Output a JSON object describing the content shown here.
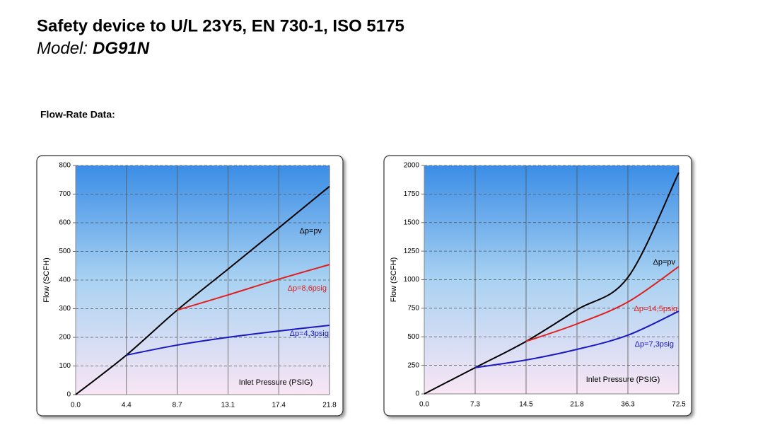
{
  "header": {
    "title": "Safety device to U/L 23Y5, EN 730-1, ISO 5175",
    "model_prefix": "Model:",
    "model": "DG91N",
    "section": "Flow-Rate Data:"
  },
  "chart_data": [
    {
      "type": "line",
      "ylabel": "Flow (SCFH)",
      "xlabel": "Inlet Pressure (PSIG)",
      "categories": [
        "0.0",
        "4.4",
        "8.7",
        "13.1",
        "17.4",
        "21.8"
      ],
      "ylim": [
        0,
        800
      ],
      "yticks": [
        0,
        100,
        200,
        300,
        400,
        500,
        600,
        700,
        800
      ],
      "grid": true,
      "series": [
        {
          "name": "Δp=pv",
          "color": "#000000",
          "values": [
            0,
            138,
            295,
            438,
            582,
            727
          ]
        },
        {
          "name": "Δp=8,6psig",
          "color": "#e0201e",
          "values": [
            null,
            null,
            295,
            348,
            403,
            454
          ]
        },
        {
          "name": "Δp=4,3psig",
          "color": "#1a1ac0",
          "values": [
            null,
            138,
            173,
            200,
            222,
            242
          ]
        }
      ]
    },
    {
      "type": "line",
      "ylabel": "Flow (SCFH)",
      "xlabel": "Inlet Pressure (PSIG)",
      "categories": [
        "0.0",
        "7.3",
        "14.5",
        "21.8",
        "36.3",
        "72.5"
      ],
      "ylim": [
        0,
        2000
      ],
      "yticks": [
        0,
        250,
        500,
        750,
        1000,
        1250,
        1500,
        1750,
        2000
      ],
      "grid": true,
      "series": [
        {
          "name": "Δp=pv",
          "color": "#000000",
          "values": [
            0,
            230,
            460,
            737,
            1020,
            1938
          ]
        },
        {
          "name": "Δp=14,5psig",
          "color": "#e0201e",
          "values": [
            null,
            null,
            460,
            613,
            805,
            1115
          ]
        },
        {
          "name": "Δp=7,3psig",
          "color": "#1a1ac0",
          "values": [
            null,
            230,
            297,
            390,
            514,
            724
          ]
        }
      ]
    }
  ]
}
